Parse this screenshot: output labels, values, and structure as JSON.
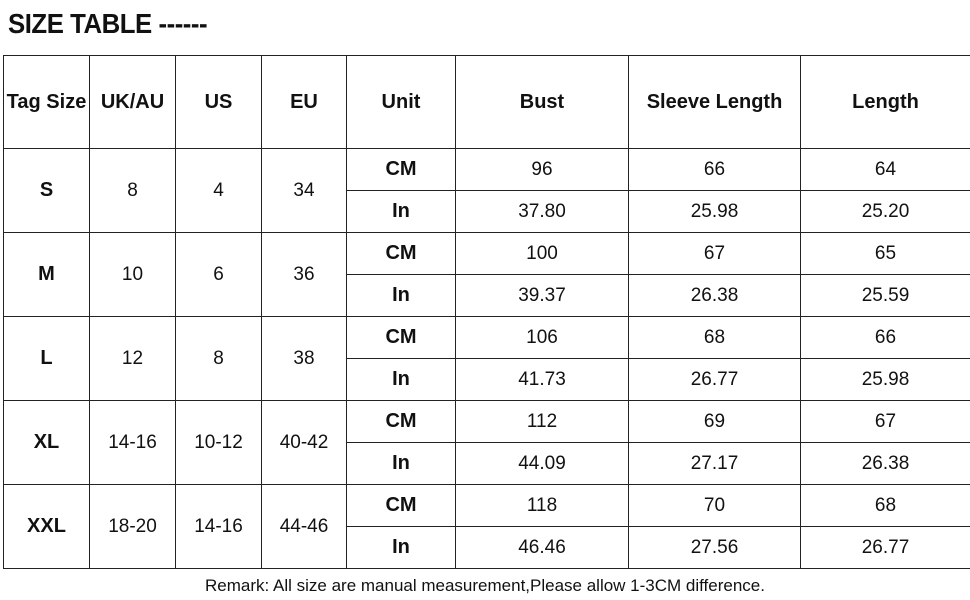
{
  "title": "SIZE TABLE ------",
  "headers": [
    "Tag Size",
    "UK/AU",
    "US",
    "EU",
    "Unit",
    "Bust",
    "Sleeve Length",
    "Length"
  ],
  "rows": [
    {
      "tag": "S",
      "uk": "8",
      "us": "4",
      "eu": "34",
      "cm": {
        "unit": "CM",
        "bust": "96",
        "sleeve": "66",
        "length": "64"
      },
      "in": {
        "unit": "In",
        "bust": "37.80",
        "sleeve": "25.98",
        "length": "25.20"
      }
    },
    {
      "tag": "M",
      "uk": "10",
      "us": "6",
      "eu": "36",
      "cm": {
        "unit": "CM",
        "bust": "100",
        "sleeve": "67",
        "length": "65"
      },
      "in": {
        "unit": "In",
        "bust": "39.37",
        "sleeve": "26.38",
        "length": "25.59"
      }
    },
    {
      "tag": "L",
      "uk": "12",
      "us": "8",
      "eu": "38",
      "cm": {
        "unit": "CM",
        "bust": "106",
        "sleeve": "68",
        "length": "66"
      },
      "in": {
        "unit": "In",
        "bust": "41.73",
        "sleeve": "26.77",
        "length": "25.98"
      }
    },
    {
      "tag": "XL",
      "uk": "14-16",
      "us": "10-12",
      "eu": "40-42",
      "cm": {
        "unit": "CM",
        "bust": "112",
        "sleeve": "69",
        "length": "67"
      },
      "in": {
        "unit": "In",
        "bust": "44.09",
        "sleeve": "27.17",
        "length": "26.38"
      }
    },
    {
      "tag": "XXL",
      "uk": "18-20",
      "us": "14-16",
      "eu": "44-46",
      "cm": {
        "unit": "CM",
        "bust": "118",
        "sleeve": "70",
        "length": "68"
      },
      "in": {
        "unit": "In",
        "bust": "46.46",
        "sleeve": "27.56",
        "length": "26.77"
      }
    }
  ],
  "remark": "Remark:  All size are manual measurement,Please allow 1-3CM difference."
}
